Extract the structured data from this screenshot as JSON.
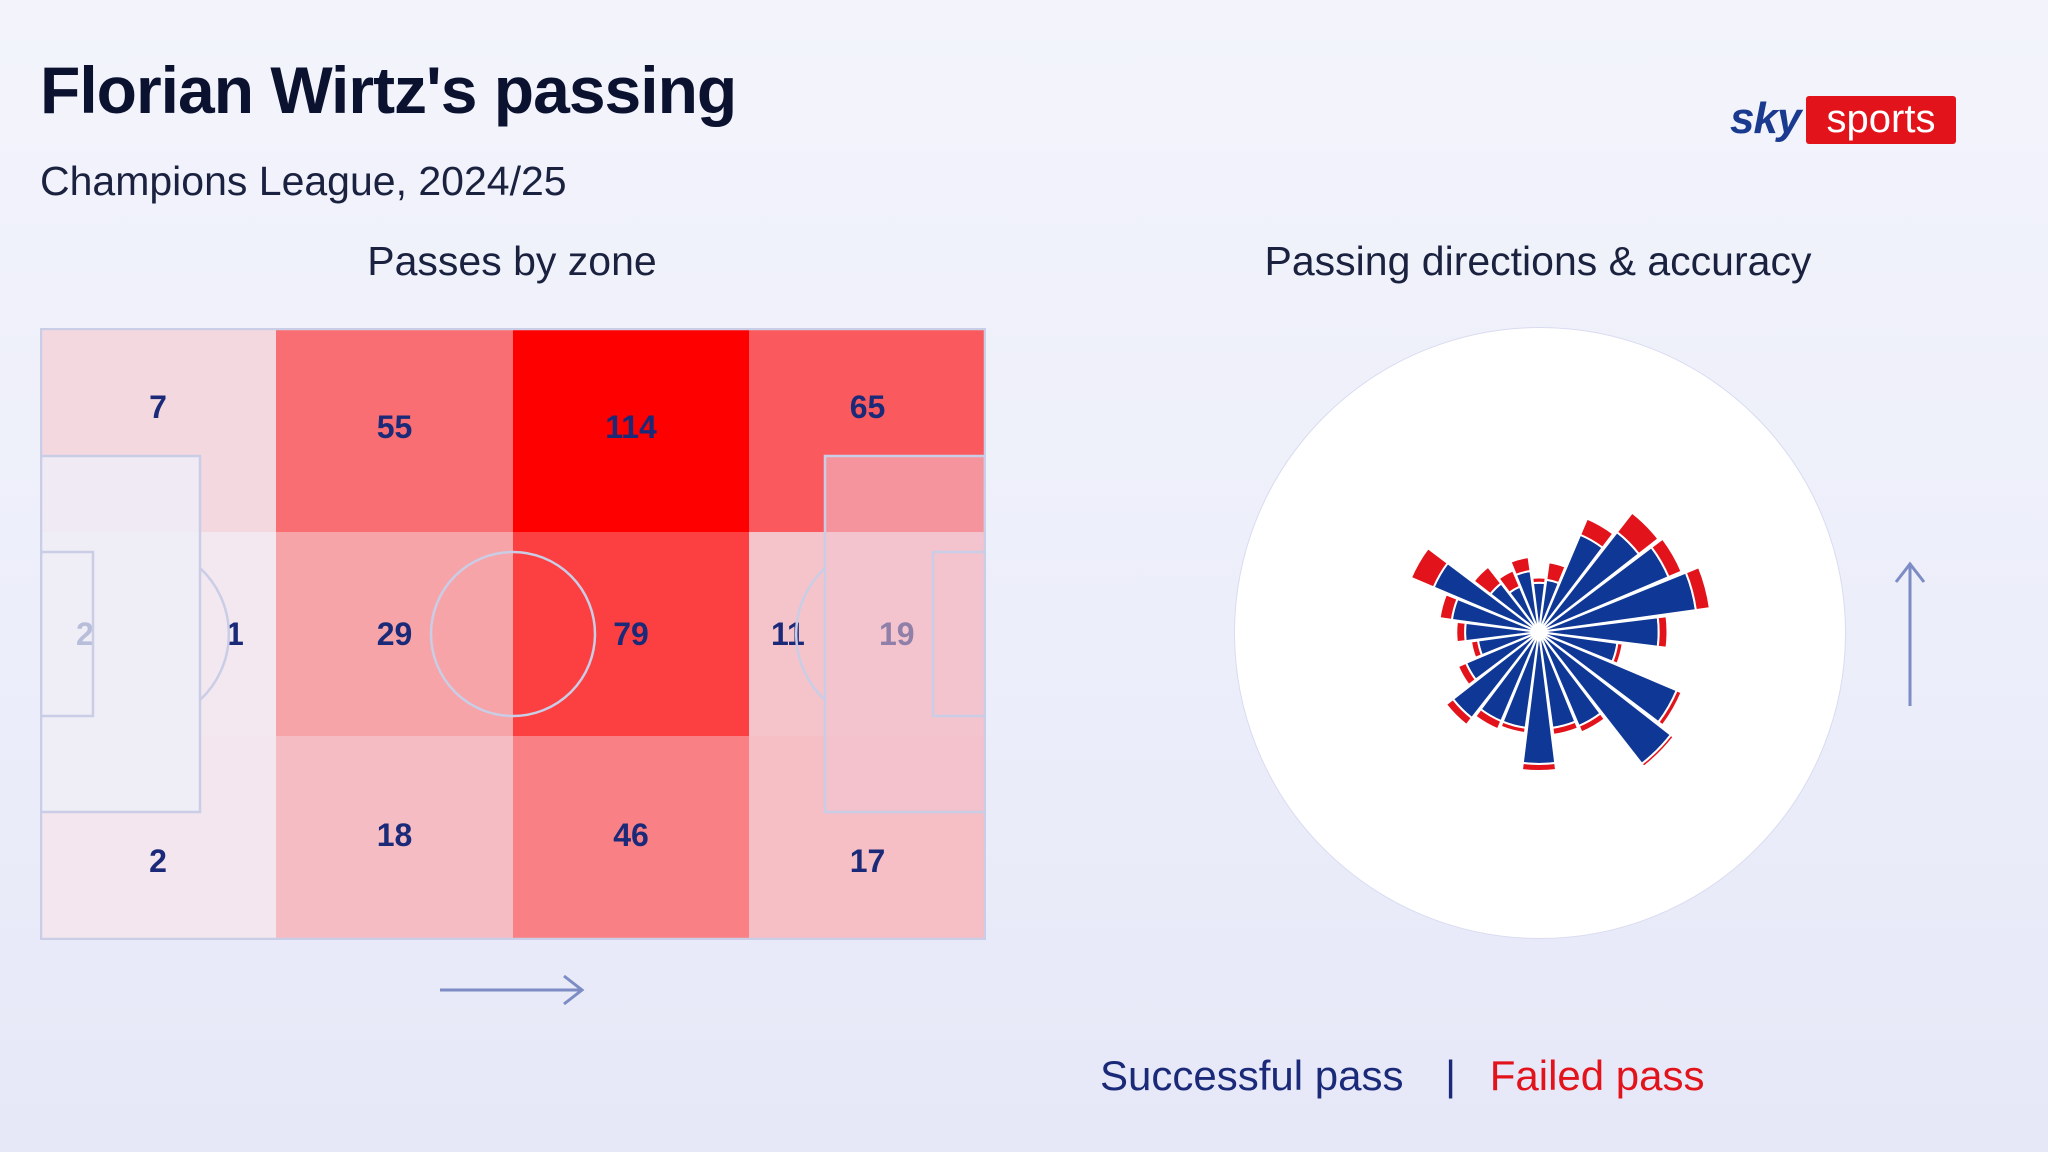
{
  "header": {
    "title": "Florian Wirtz's passing",
    "subtitle": "Champions League, 2024/25"
  },
  "logo": {
    "sky": "sky",
    "sports": "sports",
    "brand_color": "#e2131b"
  },
  "chart_data": [
    {
      "type": "heatmap",
      "title": "Passes by zone",
      "direction_of_play": "left-to-right",
      "columns": 4,
      "rows": 3,
      "zones": [
        {
          "column": 1,
          "row": "top",
          "value": 7
        },
        {
          "column": 1,
          "row": "middle-left",
          "value": 2
        },
        {
          "column": 1,
          "row": "middle-right",
          "value": 1
        },
        {
          "column": 1,
          "row": "bottom",
          "value": 2
        },
        {
          "column": 2,
          "row": "top",
          "value": 55
        },
        {
          "column": 2,
          "row": "middle",
          "value": 29
        },
        {
          "column": 2,
          "row": "bottom",
          "value": 18
        },
        {
          "column": 3,
          "row": "top",
          "value": 114
        },
        {
          "column": 3,
          "row": "middle",
          "value": 79
        },
        {
          "column": 3,
          "row": "bottom",
          "value": 46
        },
        {
          "column": 4,
          "row": "top",
          "value": 65
        },
        {
          "column": 4,
          "row": "middle-left",
          "value": 11
        },
        {
          "column": 4,
          "row": "middle-right",
          "value": 19
        },
        {
          "column": 4,
          "row": "bottom",
          "value": 17
        }
      ],
      "color_scale": {
        "low": "#f3eef6",
        "high": "#ff0000"
      }
    },
    {
      "type": "radial-bar",
      "title": "Passing directions & accuracy",
      "orientation": "up = direction of attack",
      "sectors": 24,
      "series": [
        {
          "name": "Successful pass",
          "color": "#0f3796"
        },
        {
          "name": "Failed pass",
          "color": "#e2131b"
        }
      ],
      "directions": [
        {
          "angle": 0,
          "successful": 0.28,
          "failed": 0.03
        },
        {
          "angle": 15,
          "successful": 0.3,
          "failed": 0.1
        },
        {
          "angle": 30,
          "successful": 0.6,
          "failed": 0.1
        },
        {
          "angle": 45,
          "successful": 0.72,
          "failed": 0.14
        },
        {
          "angle": 60,
          "successful": 0.8,
          "failed": 0.08
        },
        {
          "angle": 75,
          "successful": 0.9,
          "failed": 0.08
        },
        {
          "angle": 90,
          "successful": 0.68,
          "failed": 0.05
        },
        {
          "angle": 105,
          "successful": 0.45,
          "failed": 0.03
        },
        {
          "angle": 120,
          "successful": 0.85,
          "failed": 0.03
        },
        {
          "angle": 135,
          "successful": 0.95,
          "failed": 0.02
        },
        {
          "angle": 150,
          "successful": 0.58,
          "failed": 0.04
        },
        {
          "angle": 165,
          "successful": 0.55,
          "failed": 0.04
        },
        {
          "angle": 180,
          "successful": 0.75,
          "failed": 0.04
        },
        {
          "angle": 195,
          "successful": 0.55,
          "failed": 0.03
        },
        {
          "angle": 210,
          "successful": 0.55,
          "failed": 0.05
        },
        {
          "angle": 225,
          "successful": 0.62,
          "failed": 0.05
        },
        {
          "angle": 240,
          "successful": 0.45,
          "failed": 0.05
        },
        {
          "angle": 255,
          "successful": 0.35,
          "failed": 0.04
        },
        {
          "angle": 270,
          "successful": 0.42,
          "failed": 0.05
        },
        {
          "angle": 285,
          "successful": 0.5,
          "failed": 0.07
        },
        {
          "angle": 300,
          "successful": 0.65,
          "failed": 0.14
        },
        {
          "angle": 315,
          "successful": 0.35,
          "failed": 0.12
        },
        {
          "angle": 330,
          "successful": 0.28,
          "failed": 0.1
        },
        {
          "angle": 345,
          "successful": 0.35,
          "failed": 0.08
        }
      ]
    }
  ],
  "legend": {
    "successful": "Successful pass",
    "separator": "|",
    "failed": "Failed pass"
  }
}
